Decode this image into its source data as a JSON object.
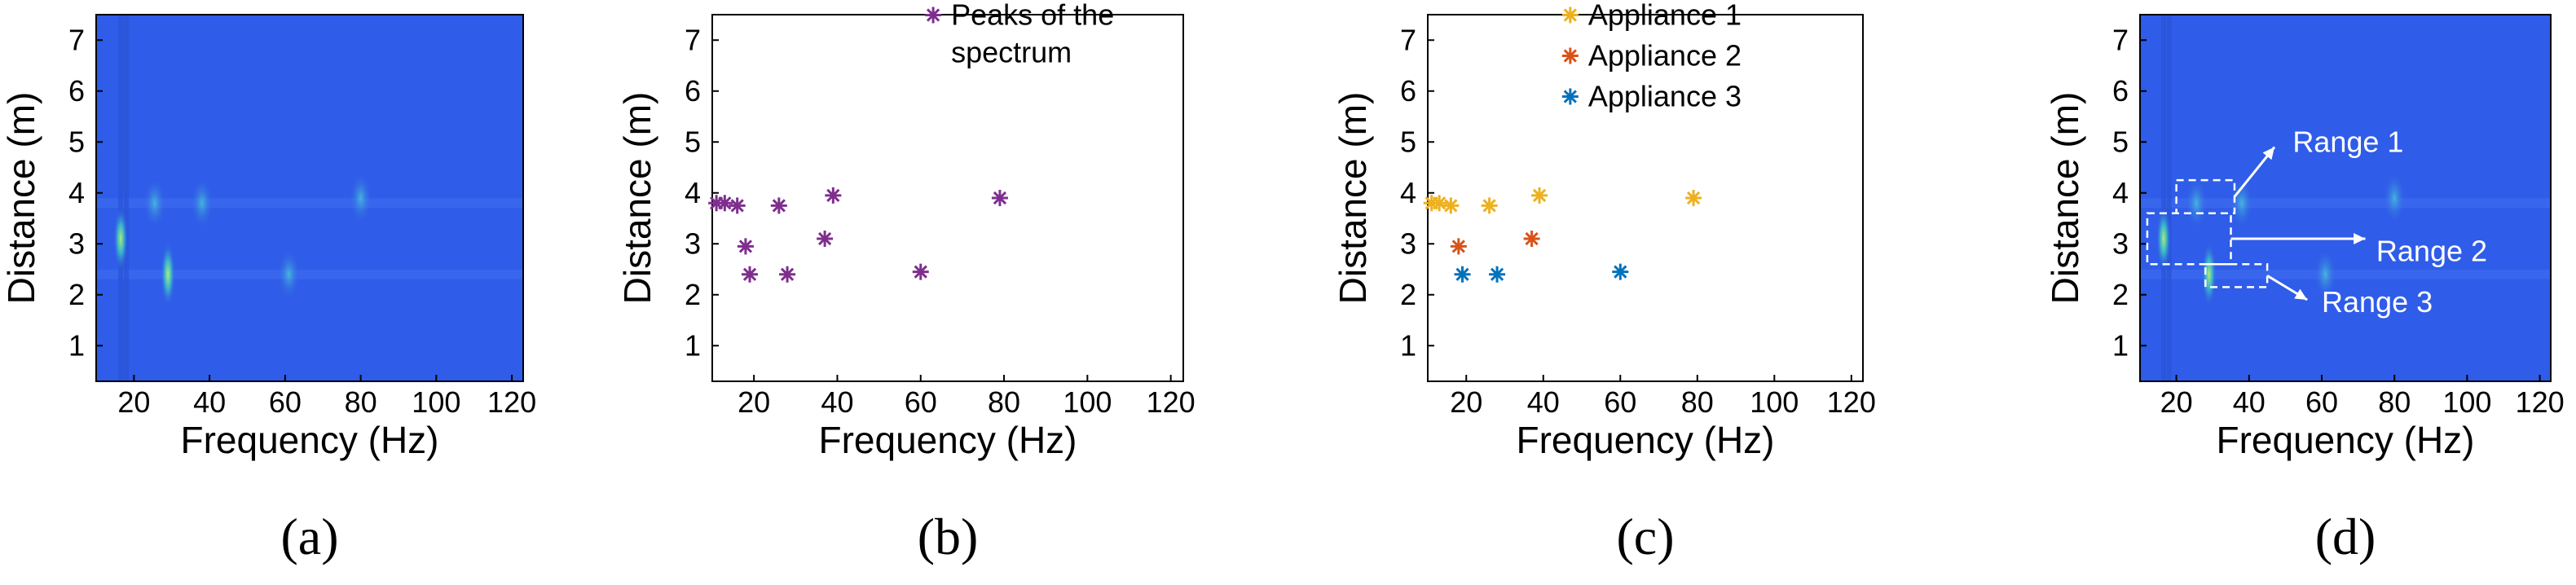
{
  "chart_data": [
    {
      "type": "heatmap",
      "panel_label": "(a)",
      "xlabel": "Frequency (Hz)",
      "ylabel": "Distance (m)",
      "xlim": [
        10,
        123
      ],
      "ylim": [
        0.3,
        7.5
      ],
      "xticks": [
        "20",
        "40",
        "60",
        "80",
        "100",
        "120"
      ],
      "yticks": [
        "1",
        "2",
        "3",
        "4",
        "5",
        "6",
        "7"
      ],
      "background_color": "#2f5ce8",
      "highlights": [
        {
          "x": 16.5,
          "y": 3.1,
          "intensity": "high"
        },
        {
          "x": 25.5,
          "y": 3.8,
          "intensity": "medium"
        },
        {
          "x": 29,
          "y": 2.4,
          "intensity": "high"
        },
        {
          "x": 38,
          "y": 3.8,
          "intensity": "medium"
        },
        {
          "x": 61,
          "y": 2.4,
          "intensity": "medium"
        },
        {
          "x": 80,
          "y": 3.9,
          "intensity": "medium"
        }
      ]
    },
    {
      "type": "scatter",
      "panel_label": "(b)",
      "xlabel": "Frequency (Hz)",
      "ylabel": "Distance (m)",
      "xlim": [
        10,
        123
      ],
      "ylim": [
        0.3,
        7.5
      ],
      "xticks": [
        "20",
        "40",
        "60",
        "80",
        "100",
        "120"
      ],
      "yticks": [
        "1",
        "2",
        "3",
        "4",
        "5",
        "6",
        "7"
      ],
      "legend": {
        "location": "top-right"
      },
      "series": [
        {
          "name": "Peaks of the spectrum",
          "legend_lines": [
            "Peaks of the spectrum"
          ],
          "color": "#7e2f8e",
          "x": [
            11,
            13,
            16,
            18,
            19,
            26,
            28,
            37,
            39,
            60,
            79
          ],
          "y": [
            3.8,
            3.8,
            3.75,
            2.95,
            2.4,
            3.75,
            2.4,
            3.1,
            3.95,
            2.45,
            3.9
          ]
        }
      ]
    },
    {
      "type": "scatter",
      "panel_label": "(c)",
      "xlabel": "Frequency (Hz)",
      "ylabel": "Distance (m)",
      "xlim": [
        10,
        123
      ],
      "ylim": [
        0.3,
        7.5
      ],
      "xticks": [
        "20",
        "40",
        "60",
        "80",
        "100",
        "120"
      ],
      "yticks": [
        "1",
        "2",
        "3",
        "4",
        "5",
        "6",
        "7"
      ],
      "legend": {
        "location": "top-right"
      },
      "series": [
        {
          "name": "Appliance 1",
          "color": "#edb120",
          "x": [
            11,
            13,
            16,
            26,
            39,
            79
          ],
          "y": [
            3.8,
            3.8,
            3.75,
            3.75,
            3.95,
            3.9
          ]
        },
        {
          "name": "Appliance 2",
          "color": "#d95319",
          "x": [
            18,
            37
          ],
          "y": [
            2.95,
            3.1
          ]
        },
        {
          "name": "Appliance 3",
          "color": "#0072bd",
          "x": [
            19,
            28,
            60
          ],
          "y": [
            2.4,
            2.4,
            2.45
          ]
        }
      ]
    },
    {
      "type": "heatmap",
      "panel_label": "(d)",
      "xlabel": "Frequency (Hz)",
      "ylabel": "Distance (m)",
      "xlim": [
        10,
        123
      ],
      "ylim": [
        0.3,
        7.5
      ],
      "xticks": [
        "20",
        "40",
        "60",
        "80",
        "100",
        "120"
      ],
      "yticks": [
        "1",
        "2",
        "3",
        "4",
        "5",
        "6",
        "7"
      ],
      "background_color": "#2f5ce8",
      "highlights": [
        {
          "x": 16.5,
          "y": 3.1,
          "intensity": "high"
        },
        {
          "x": 25.5,
          "y": 3.8,
          "intensity": "medium"
        },
        {
          "x": 29,
          "y": 2.4,
          "intensity": "high"
        },
        {
          "x": 38,
          "y": 3.8,
          "intensity": "medium"
        },
        {
          "x": 61,
          "y": 2.4,
          "intensity": "medium"
        },
        {
          "x": 80,
          "y": 3.9,
          "intensity": "medium"
        }
      ],
      "ranges": [
        {
          "label": "Range 1",
          "x": [
            20,
            36
          ],
          "y": [
            3.6,
            4.25
          ]
        },
        {
          "label": "Range 2",
          "x": [
            12,
            35
          ],
          "y": [
            2.6,
            3.6
          ]
        },
        {
          "label": "Range 3",
          "x": [
            28,
            45
          ],
          "y": [
            2.15,
            2.6
          ]
        }
      ]
    }
  ]
}
